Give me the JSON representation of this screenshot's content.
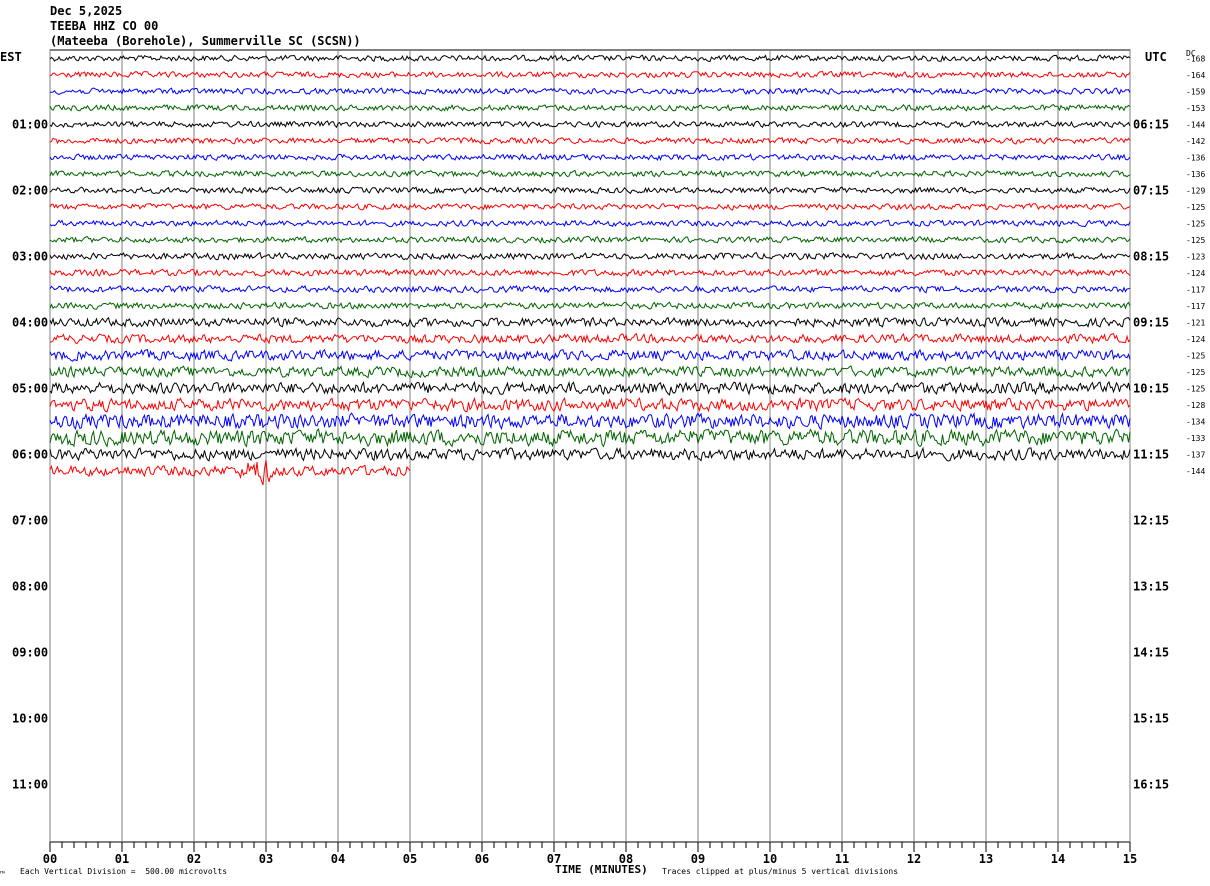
{
  "header": {
    "date": "Dec 5,2025",
    "station": "TEEBA HHZ CO 00",
    "location": "(Mateeba (Borehole), Summerville SC (SCSN))"
  },
  "labels": {
    "left_tz": "EST",
    "right_tz": "UTC",
    "dc_label": "DC",
    "xaxis_title": "TIME (MINUTES)",
    "scale_note": "Each Vertical Division =  500.00 microvolts",
    "clip_note": "Traces clipped at plus/minus 5 vertical divisions",
    "corner_mark": "™"
  },
  "chart_data": {
    "type": "line",
    "title": "",
    "xlabel": "TIME (MINUTES)",
    "x_range": [
      0,
      15
    ],
    "x_ticks": [
      "00",
      "01",
      "02",
      "03",
      "04",
      "05",
      "06",
      "07",
      "08",
      "09",
      "10",
      "11",
      "12",
      "13",
      "14",
      "15"
    ],
    "rows_total": 48,
    "trace_colors": [
      "#000000",
      "#ff0000",
      "#0000ff",
      "#006400"
    ],
    "hour_labels_est": [
      "01:00",
      "02:00",
      "03:00",
      "04:00",
      "05:00",
      "06:00",
      "07:00",
      "08:00",
      "09:00",
      "10:00",
      "11:00"
    ],
    "hour_labels_utc": [
      "06:15",
      "07:15",
      "08:15",
      "09:15",
      "10:15",
      "11:15",
      "12:15",
      "13:15",
      "14:15",
      "15:15",
      "16:15"
    ],
    "dc_offsets": [
      -168,
      -164,
      -159,
      -153,
      -144,
      -142,
      -136,
      -136,
      -129,
      -125,
      -125,
      -125,
      -123,
      -124,
      -117,
      -117,
      -121,
      -124,
      -125,
      -125,
      -125,
      -128,
      -134,
      -133,
      -137,
      -144
    ],
    "trace_amplitude": [
      0.2,
      0.2,
      0.2,
      0.2,
      0.2,
      0.2,
      0.2,
      0.2,
      0.2,
      0.2,
      0.2,
      0.2,
      0.22,
      0.22,
      0.22,
      0.22,
      0.3,
      0.3,
      0.35,
      0.35,
      0.4,
      0.42,
      0.5,
      0.55,
      0.4,
      0.35
    ],
    "last_trace_end_minute": 5.0,
    "event_minute": 2.9
  }
}
